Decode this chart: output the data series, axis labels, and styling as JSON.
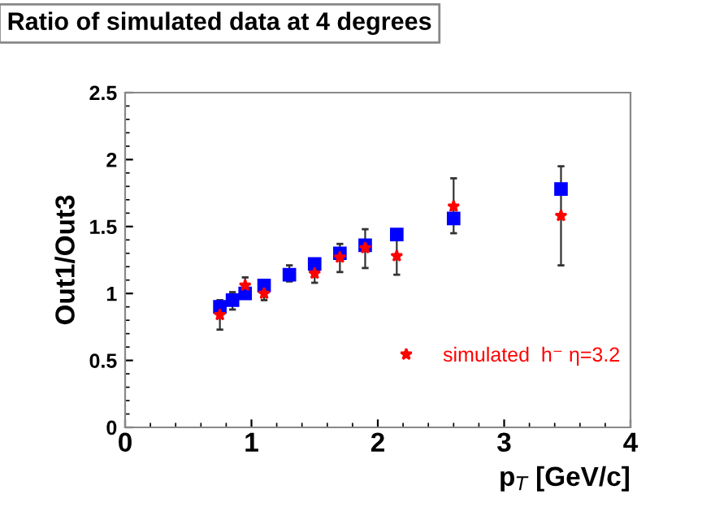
{
  "chart_data": {
    "type": "scatter",
    "title": "Ratio of simulated data at 4 degrees",
    "xlabel": "p$_{T}$ [GeV/c]",
    "ylabel": "Out1/Out3",
    "x": [
      0.75,
      0.85,
      0.95,
      1.1,
      1.3,
      1.5,
      1.7,
      1.9,
      2.15,
      2.6,
      3.45
    ],
    "series": [
      {
        "color": "#0000ff",
        "marker": "square",
        "values": [
          0.9,
          0.95,
          1.0,
          1.06,
          1.14,
          1.22,
          1.3,
          1.36,
          1.44,
          1.56,
          1.78
        ],
        "errors": [
          [
            0.73,
            0.95
          ],
          [
            0.88,
            1.01
          ],
          [
            1.0,
            1.12
          ],
          [
            0.95,
            1.06
          ],
          [
            1.09,
            1.21
          ],
          [
            1.08,
            1.22
          ],
          [
            1.16,
            1.37
          ],
          [
            1.19,
            1.48
          ],
          [
            1.14,
            1.44
          ],
          [
            1.45,
            1.86
          ],
          [
            1.21,
            1.95
          ]
        ]
      },
      {
        "name": "simulated  h⁻ η=3.2",
        "color": "#ff0000",
        "marker": "star",
        "values": [
          0.84,
          null,
          1.06,
          1.0,
          null,
          1.15,
          1.27,
          1.34,
          1.28,
          1.65,
          1.58
        ]
      }
    ],
    "xlim": [
      0,
      4
    ],
    "ylim": [
      0,
      2.5
    ],
    "xticks": [
      0,
      1,
      2,
      3,
      4
    ],
    "yticks": [
      0,
      0.5,
      1,
      1.5,
      2,
      2.5
    ],
    "grid": false,
    "legend": "bottom right"
  }
}
